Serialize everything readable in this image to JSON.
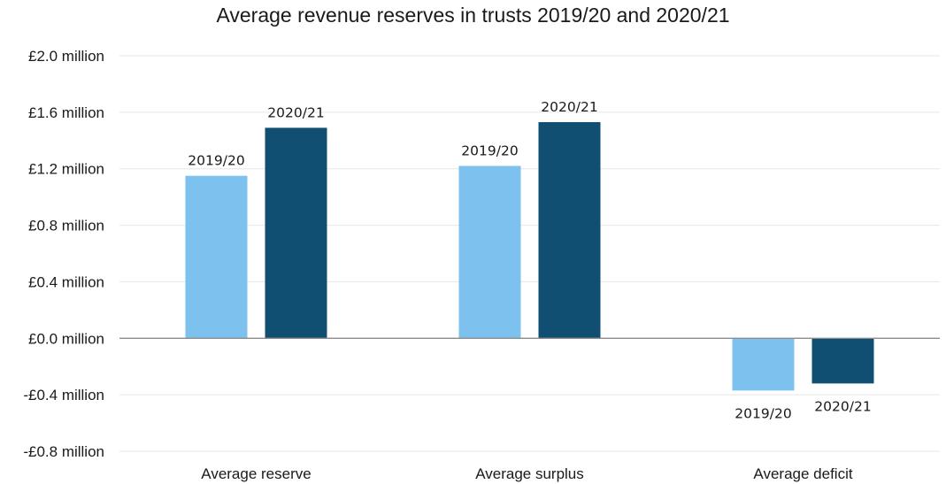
{
  "chart_data": {
    "type": "bar",
    "title": "Average revenue reserves in trusts 2019/20 and 2020/21",
    "categories": [
      "Average reserve",
      "Average surplus",
      "Average deficit"
    ],
    "series": [
      {
        "name": "2019/20",
        "values": [
          1.15,
          1.22,
          -0.37
        ],
        "color": "#7dc1ee"
      },
      {
        "name": "2020/21",
        "values": [
          1.49,
          1.53,
          -0.32
        ],
        "color": "#114f72"
      }
    ],
    "ylim": [
      -0.8,
      2.0
    ],
    "yticks": [
      {
        "value": 2.0,
        "label": "£2.0 million"
      },
      {
        "value": 1.6,
        "label": "£1.6 million"
      },
      {
        "value": 1.2,
        "label": "£1.2 million"
      },
      {
        "value": 0.8,
        "label": "£0.8 million"
      },
      {
        "value": 0.4,
        "label": "£0.4 million"
      },
      {
        "value": 0.0,
        "label": "£0.0 million"
      },
      {
        "value": -0.4,
        "label": "-£0.4 million"
      },
      {
        "value": -0.8,
        "label": "-£0.8 million"
      }
    ],
    "grid": true,
    "legend": "none (series names shown as data labels on bars)"
  }
}
